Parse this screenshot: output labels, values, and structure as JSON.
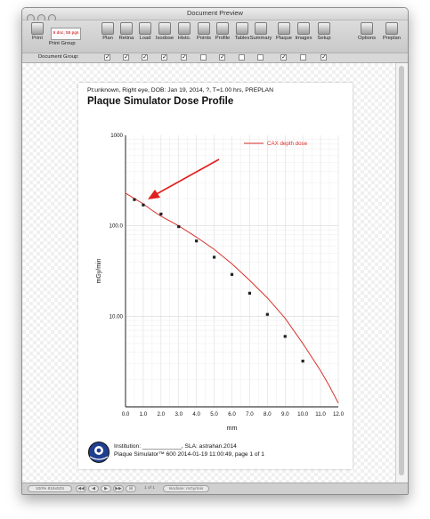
{
  "window": {
    "title": "Document Preview"
  },
  "toolbar": {
    "print_label": "Print",
    "print_group_label": "Print Group",
    "print_group_value": "6 doc, 55 pgs",
    "tools": [
      "Plan",
      "Retina",
      "Load",
      "Isodose",
      "Histo.",
      "Points",
      "Profile",
      "Tables",
      "Summary",
      "Plaque",
      "Images",
      "Setup"
    ],
    "options_label": "Options",
    "preplan_label": "Preplan"
  },
  "group_bar": {
    "label": "Document Group:",
    "checks": [
      true,
      true,
      true,
      true,
      true,
      false,
      true,
      false,
      false,
      true,
      false,
      true
    ]
  },
  "page": {
    "patient_line": "Pt:unknown, Right eye, DOB: Jan 19, 2014, ?, T=1.00 hrs, PREPLAN",
    "title": "Plaque Simulator Dose Profile",
    "footer_institution": "Institution: ____________, SLA: astrahan.2014",
    "footer_line2": "Plaque Simulator™ 600 2014-01-19 11:00:49, page 1 of 1",
    "logo_text": "Eye Physics"
  },
  "chart_data": {
    "type": "line",
    "title": "",
    "xlabel": "mm",
    "ylabel": "mGy/min",
    "xlim": [
      0,
      12
    ],
    "ylim": [
      1,
      1000
    ],
    "yscale": "log",
    "grid": true,
    "legend_position": "top-right",
    "xticks": [
      "0.0",
      "1.0",
      "2.0",
      "3.0",
      "4.0",
      "5.0",
      "6.0",
      "7.0",
      "8.0",
      "9.0",
      "10.0",
      "11.0",
      "12.0"
    ],
    "yticks": [
      "1000",
      "100.0",
      "10.00"
    ],
    "series": [
      {
        "name": "CAX depth dose",
        "color": "#d9302a",
        "x": [
          0,
          0.5,
          1,
          1.5,
          2,
          3,
          4,
          5,
          6,
          7,
          8,
          9,
          10,
          11,
          11.5,
          12
        ],
        "y": [
          230,
          200,
          175,
          148,
          128,
          100,
          75,
          55,
          38,
          25,
          16,
          9.5,
          5.0,
          2.5,
          1.7,
          1.1
        ]
      },
      {
        "name": "",
        "color": "#222222",
        "marker": "square",
        "x": [
          0.5,
          1,
          2,
          3,
          4,
          5,
          6,
          7,
          8,
          9,
          10
        ],
        "y": [
          195,
          170,
          135,
          98,
          68,
          45,
          29,
          18,
          10.5,
          6.0,
          3.2
        ]
      }
    ],
    "annotation": {
      "type": "arrow",
      "color": "#e0201f"
    }
  },
  "status": {
    "zoom": "100% 816x525",
    "page_of": "1 of 1",
    "unit_select": "Isodose: mGy/min"
  }
}
